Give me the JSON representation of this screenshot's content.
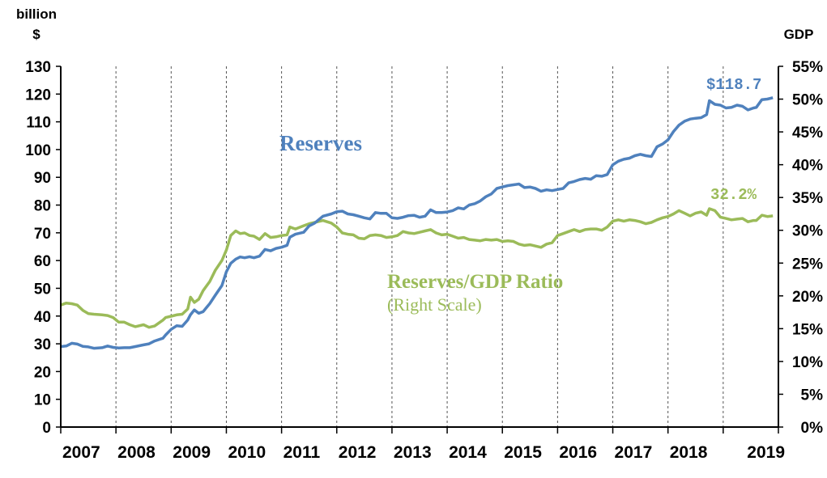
{
  "chart_data": {
    "type": "line",
    "units": {
      "left_line1": "billion",
      "left_line2": "$",
      "right": "GDP"
    },
    "left_axis": {
      "min": 0,
      "max": 130,
      "step": 10
    },
    "right_axis": {
      "min": 0,
      "max": 55,
      "step": 5,
      "suffix": "%"
    },
    "year_labels": [
      "2007",
      "2008",
      "2009",
      "2010",
      "2011",
      "2012",
      "2013",
      "2014",
      "2015",
      "2016",
      "2017",
      "2018",
      "2019"
    ],
    "colors": {
      "reserves": "#4F81BD",
      "ratio": "#9BBB59"
    },
    "annotations": {
      "reserves_label": "Reserves",
      "ratio_label": "Reserves/GDP Ratio",
      "ratio_sublabel": "(Right Scale)",
      "reserves_end": "$118.7",
      "ratio_end": "32.2%"
    },
    "series": [
      {
        "name": "Reserves",
        "axis": "left",
        "points": [
          [
            2007.0,
            29.0
          ],
          [
            2007.1,
            29.2
          ],
          [
            2007.2,
            30.2
          ],
          [
            2007.3,
            29.9
          ],
          [
            2007.4,
            29.1
          ],
          [
            2007.5,
            28.9
          ],
          [
            2007.6,
            28.4
          ],
          [
            2007.75,
            28.6
          ],
          [
            2007.85,
            29.2
          ],
          [
            2007.95,
            28.7
          ],
          [
            2008.05,
            28.5
          ],
          [
            2008.15,
            28.6
          ],
          [
            2008.25,
            28.6
          ],
          [
            2008.35,
            29.0
          ],
          [
            2008.5,
            29.6
          ],
          [
            2008.6,
            30.0
          ],
          [
            2008.7,
            31.0
          ],
          [
            2008.85,
            32.0
          ],
          [
            2008.9,
            33.2
          ],
          [
            2009.0,
            35.2
          ],
          [
            2009.1,
            36.5
          ],
          [
            2009.2,
            36.3
          ],
          [
            2009.3,
            38.6
          ],
          [
            2009.35,
            40.5
          ],
          [
            2009.42,
            42.2
          ],
          [
            2009.5,
            41.0
          ],
          [
            2009.58,
            41.6
          ],
          [
            2009.7,
            44.5
          ],
          [
            2009.8,
            47.5
          ],
          [
            2009.92,
            51.0
          ],
          [
            2010.0,
            56.0
          ],
          [
            2010.08,
            59.0
          ],
          [
            2010.17,
            60.5
          ],
          [
            2010.25,
            61.3
          ],
          [
            2010.33,
            61.0
          ],
          [
            2010.42,
            61.4
          ],
          [
            2010.5,
            61.0
          ],
          [
            2010.6,
            61.6
          ],
          [
            2010.7,
            64.0
          ],
          [
            2010.8,
            63.5
          ],
          [
            2010.9,
            64.4
          ],
          [
            2011.0,
            64.8
          ],
          [
            2011.1,
            65.5
          ],
          [
            2011.15,
            68.4
          ],
          [
            2011.25,
            69.5
          ],
          [
            2011.4,
            70.2
          ],
          [
            2011.5,
            72.5
          ],
          [
            2011.6,
            73.5
          ],
          [
            2011.75,
            76.0
          ],
          [
            2011.9,
            76.8
          ],
          [
            2012.0,
            77.6
          ],
          [
            2012.1,
            77.8
          ],
          [
            2012.2,
            76.8
          ],
          [
            2012.3,
            76.5
          ],
          [
            2012.4,
            76.0
          ],
          [
            2012.5,
            75.4
          ],
          [
            2012.6,
            75.0
          ],
          [
            2012.7,
            77.3
          ],
          [
            2012.8,
            77.0
          ],
          [
            2012.9,
            77.0
          ],
          [
            2013.0,
            75.4
          ],
          [
            2013.1,
            75.2
          ],
          [
            2013.2,
            75.6
          ],
          [
            2013.3,
            76.2
          ],
          [
            2013.4,
            76.3
          ],
          [
            2013.5,
            75.6
          ],
          [
            2013.6,
            76.0
          ],
          [
            2013.7,
            78.3
          ],
          [
            2013.8,
            77.3
          ],
          [
            2013.9,
            77.3
          ],
          [
            2014.0,
            77.5
          ],
          [
            2014.1,
            78.0
          ],
          [
            2014.2,
            79.0
          ],
          [
            2014.3,
            78.6
          ],
          [
            2014.4,
            80.0
          ],
          [
            2014.5,
            80.5
          ],
          [
            2014.6,
            81.5
          ],
          [
            2014.7,
            83.0
          ],
          [
            2014.8,
            84.0
          ],
          [
            2014.9,
            86.0
          ],
          [
            2015.0,
            86.5
          ],
          [
            2015.1,
            87.0
          ],
          [
            2015.2,
            87.3
          ],
          [
            2015.3,
            87.6
          ],
          [
            2015.4,
            86.3
          ],
          [
            2015.5,
            86.5
          ],
          [
            2015.6,
            86.0
          ],
          [
            2015.7,
            85.0
          ],
          [
            2015.8,
            85.5
          ],
          [
            2015.9,
            85.2
          ],
          [
            2016.0,
            85.6
          ],
          [
            2016.1,
            86.0
          ],
          [
            2016.2,
            88.0
          ],
          [
            2016.3,
            88.5
          ],
          [
            2016.4,
            89.2
          ],
          [
            2016.5,
            89.6
          ],
          [
            2016.6,
            89.3
          ],
          [
            2016.7,
            90.6
          ],
          [
            2016.8,
            90.4
          ],
          [
            2016.9,
            91.0
          ],
          [
            2017.0,
            94.5
          ],
          [
            2017.1,
            95.8
          ],
          [
            2017.2,
            96.5
          ],
          [
            2017.3,
            96.9
          ],
          [
            2017.4,
            97.8
          ],
          [
            2017.5,
            98.3
          ],
          [
            2017.6,
            97.8
          ],
          [
            2017.7,
            97.5
          ],
          [
            2017.8,
            101.0
          ],
          [
            2017.9,
            102.0
          ],
          [
            2018.0,
            103.5
          ],
          [
            2018.1,
            106.5
          ],
          [
            2018.2,
            108.8
          ],
          [
            2018.3,
            110.2
          ],
          [
            2018.4,
            111.0
          ],
          [
            2018.5,
            111.3
          ],
          [
            2018.6,
            111.5
          ],
          [
            2018.7,
            112.6
          ],
          [
            2018.75,
            117.6
          ],
          [
            2018.85,
            116.3
          ],
          [
            2018.95,
            116.0
          ],
          [
            2019.05,
            115.0
          ],
          [
            2019.15,
            115.2
          ],
          [
            2019.25,
            116.0
          ],
          [
            2019.35,
            115.6
          ],
          [
            2019.45,
            114.3
          ],
          [
            2019.55,
            115.0
          ],
          [
            2019.6,
            115.2
          ],
          [
            2019.7,
            118.0
          ],
          [
            2019.8,
            118.2
          ],
          [
            2019.9,
            118.7
          ]
        ]
      },
      {
        "name": "Reserves/GDP Ratio",
        "axis": "right",
        "points": [
          [
            2007.0,
            18.6
          ],
          [
            2007.1,
            18.9
          ],
          [
            2007.2,
            18.8
          ],
          [
            2007.3,
            18.6
          ],
          [
            2007.4,
            17.8
          ],
          [
            2007.5,
            17.3
          ],
          [
            2007.6,
            17.2
          ],
          [
            2007.75,
            17.1
          ],
          [
            2007.85,
            17.0
          ],
          [
            2007.95,
            16.7
          ],
          [
            2008.05,
            16.0
          ],
          [
            2008.15,
            16.0
          ],
          [
            2008.25,
            15.6
          ],
          [
            2008.35,
            15.3
          ],
          [
            2008.5,
            15.6
          ],
          [
            2008.6,
            15.2
          ],
          [
            2008.7,
            15.4
          ],
          [
            2008.85,
            16.3
          ],
          [
            2008.9,
            16.7
          ],
          [
            2009.0,
            16.9
          ],
          [
            2009.1,
            17.1
          ],
          [
            2009.2,
            17.2
          ],
          [
            2009.3,
            18.0
          ],
          [
            2009.35,
            19.8
          ],
          [
            2009.42,
            19.0
          ],
          [
            2009.5,
            19.5
          ],
          [
            2009.58,
            20.8
          ],
          [
            2009.7,
            22.2
          ],
          [
            2009.8,
            23.9
          ],
          [
            2009.92,
            25.4
          ],
          [
            2010.0,
            27.0
          ],
          [
            2010.08,
            29.2
          ],
          [
            2010.17,
            29.9
          ],
          [
            2010.25,
            29.5
          ],
          [
            2010.33,
            29.6
          ],
          [
            2010.42,
            29.2
          ],
          [
            2010.5,
            29.1
          ],
          [
            2010.6,
            28.6
          ],
          [
            2010.7,
            29.5
          ],
          [
            2010.8,
            28.9
          ],
          [
            2010.9,
            29.0
          ],
          [
            2011.0,
            29.2
          ],
          [
            2011.1,
            29.3
          ],
          [
            2011.15,
            30.5
          ],
          [
            2011.25,
            30.2
          ],
          [
            2011.4,
            30.7
          ],
          [
            2011.5,
            31.0
          ],
          [
            2011.6,
            31.2
          ],
          [
            2011.75,
            31.5
          ],
          [
            2011.9,
            31.1
          ],
          [
            2012.0,
            30.5
          ],
          [
            2012.1,
            29.6
          ],
          [
            2012.2,
            29.4
          ],
          [
            2012.3,
            29.3
          ],
          [
            2012.4,
            28.8
          ],
          [
            2012.5,
            28.7
          ],
          [
            2012.6,
            29.2
          ],
          [
            2012.7,
            29.3
          ],
          [
            2012.8,
            29.2
          ],
          [
            2012.9,
            28.9
          ],
          [
            2013.0,
            29.0
          ],
          [
            2013.1,
            29.2
          ],
          [
            2013.2,
            29.8
          ],
          [
            2013.3,
            29.6
          ],
          [
            2013.4,
            29.5
          ],
          [
            2013.5,
            29.7
          ],
          [
            2013.6,
            29.9
          ],
          [
            2013.7,
            30.1
          ],
          [
            2013.8,
            29.6
          ],
          [
            2013.9,
            29.3
          ],
          [
            2014.0,
            29.4
          ],
          [
            2014.1,
            29.1
          ],
          [
            2014.2,
            28.8
          ],
          [
            2014.3,
            28.9
          ],
          [
            2014.4,
            28.6
          ],
          [
            2014.5,
            28.5
          ],
          [
            2014.6,
            28.4
          ],
          [
            2014.7,
            28.6
          ],
          [
            2014.8,
            28.5
          ],
          [
            2014.9,
            28.6
          ],
          [
            2015.0,
            28.3
          ],
          [
            2015.1,
            28.4
          ],
          [
            2015.2,
            28.3
          ],
          [
            2015.3,
            27.9
          ],
          [
            2015.4,
            27.7
          ],
          [
            2015.5,
            27.8
          ],
          [
            2015.6,
            27.6
          ],
          [
            2015.7,
            27.4
          ],
          [
            2015.8,
            27.9
          ],
          [
            2015.9,
            28.1
          ],
          [
            2016.0,
            29.2
          ],
          [
            2016.1,
            29.5
          ],
          [
            2016.2,
            29.8
          ],
          [
            2016.3,
            30.1
          ],
          [
            2016.4,
            29.8
          ],
          [
            2016.5,
            30.1
          ],
          [
            2016.6,
            30.2
          ],
          [
            2016.7,
            30.2
          ],
          [
            2016.8,
            30.0
          ],
          [
            2016.9,
            30.5
          ],
          [
            2017.0,
            31.4
          ],
          [
            2017.1,
            31.6
          ],
          [
            2017.2,
            31.4
          ],
          [
            2017.3,
            31.6
          ],
          [
            2017.4,
            31.5
          ],
          [
            2017.5,
            31.3
          ],
          [
            2017.6,
            31.0
          ],
          [
            2017.7,
            31.2
          ],
          [
            2017.8,
            31.6
          ],
          [
            2017.9,
            31.9
          ],
          [
            2018.0,
            32.1
          ],
          [
            2018.1,
            32.5
          ],
          [
            2018.2,
            33.0
          ],
          [
            2018.3,
            32.6
          ],
          [
            2018.4,
            32.2
          ],
          [
            2018.5,
            32.6
          ],
          [
            2018.6,
            32.8
          ],
          [
            2018.7,
            32.3
          ],
          [
            2018.75,
            33.3
          ],
          [
            2018.85,
            33.0
          ],
          [
            2018.95,
            32.0
          ],
          [
            2019.05,
            31.8
          ],
          [
            2019.15,
            31.6
          ],
          [
            2019.25,
            31.7
          ],
          [
            2019.35,
            31.8
          ],
          [
            2019.45,
            31.3
          ],
          [
            2019.55,
            31.5
          ],
          [
            2019.6,
            31.5
          ],
          [
            2019.7,
            32.3
          ],
          [
            2019.8,
            32.1
          ],
          [
            2019.9,
            32.2
          ]
        ]
      }
    ]
  }
}
